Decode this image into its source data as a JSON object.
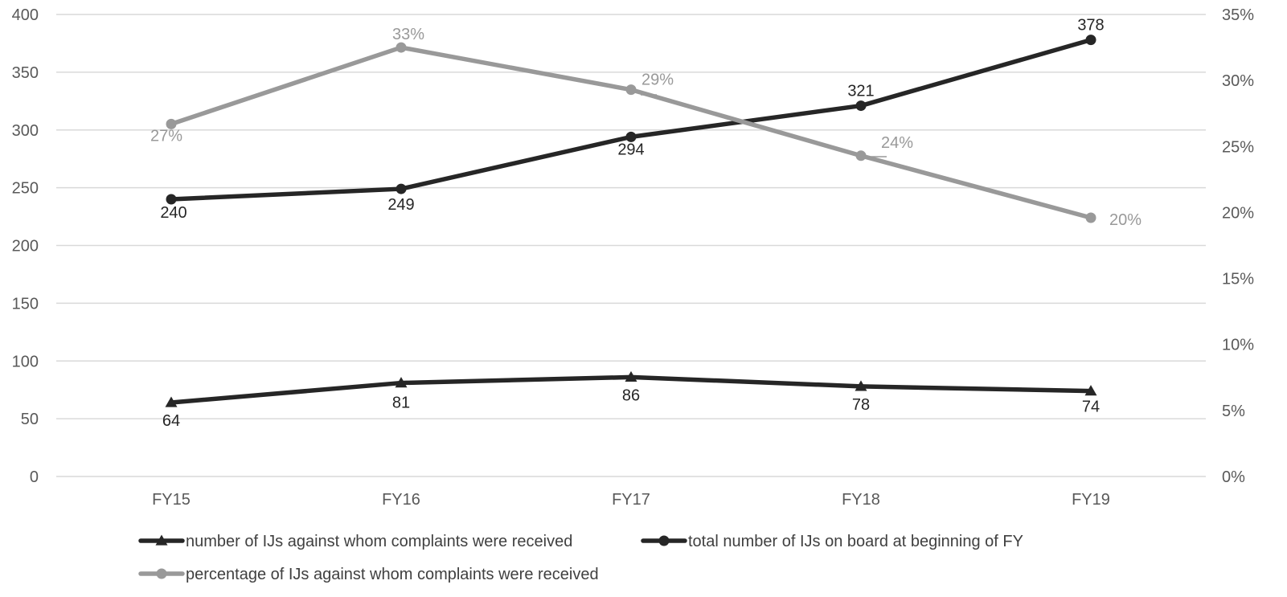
{
  "chart_data": {
    "type": "line",
    "categories": [
      "FY15",
      "FY16",
      "FY17",
      "FY18",
      "FY19"
    ],
    "y_left": {
      "ylim": [
        0,
        400
      ],
      "ticks": [
        0,
        50,
        100,
        150,
        200,
        250,
        300,
        350,
        400
      ]
    },
    "y_right": {
      "ylim": [
        0,
        35
      ],
      "ticks": [
        "0%",
        "5%",
        "10%",
        "15%",
        "20%",
        "25%",
        "30%",
        "35%"
      ]
    },
    "grid": true,
    "legend_position": "bottom",
    "series": [
      {
        "name": "number of IJs against whom complaints were received",
        "axis": "left",
        "marker": "triangle",
        "color": "#262626",
        "values": [
          64,
          81,
          86,
          78,
          74
        ],
        "labels": [
          "64",
          "81",
          "86",
          "78",
          "74"
        ]
      },
      {
        "name": "total number of IJs on board at beginning of FY",
        "axis": "left",
        "marker": "circle",
        "color": "#262626",
        "values": [
          240,
          249,
          294,
          321,
          378
        ],
        "labels": [
          "240",
          "249",
          "294",
          "321",
          "378"
        ]
      },
      {
        "name": "percentage of IJs against whom complaints were received",
        "axis": "right",
        "marker": "circle",
        "color": "#999999",
        "values": [
          26.7,
          32.5,
          29.3,
          24.3,
          19.6
        ],
        "labels": [
          "27%",
          "33%",
          "29%",
          "24%",
          "20%"
        ]
      }
    ]
  }
}
